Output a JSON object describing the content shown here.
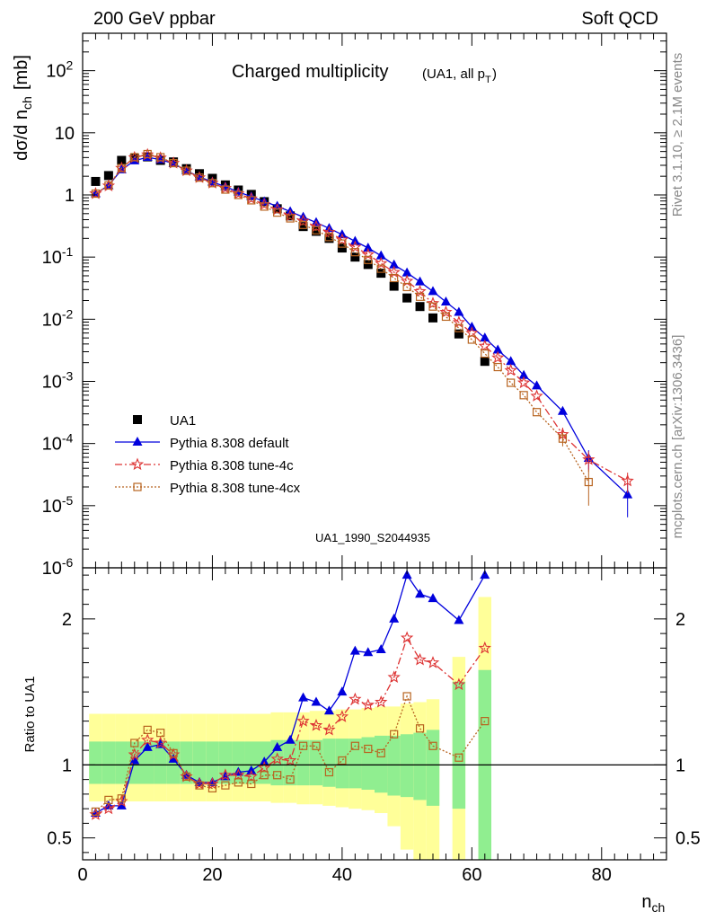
{
  "header": {
    "left": "200 GeV ppbar",
    "right": "Soft QCD",
    "side_top": "Rivet 3.1.10, ≥ 2.1M events",
    "side_bottom": "mcplots.cern.ch [arXiv:1306.3436]"
  },
  "chart_data": [
    {
      "type": "scatter",
      "title": "Charged multiplicity",
      "subtitle": "(UA1, all p_T)",
      "analysis_tag": "UA1_1990_S2044935",
      "ylabel": "dσ/d n_ch [mb]",
      "yscale": "log",
      "ylim": [
        1e-06,
        400
      ],
      "xlim": [
        0,
        90
      ],
      "ytick_labels": [
        "10^-6",
        "10^-5",
        "10^-4",
        "10^-3",
        "10^-2",
        "10^-1",
        "1",
        "10",
        "10^2"
      ],
      "legend_placement": "lower-left",
      "series": [
        {
          "name": "UA1",
          "color": "#000000",
          "marker": "filled-square",
          "line": "none",
          "x": [
            2,
            4,
            6,
            8,
            10,
            12,
            14,
            16,
            18,
            20,
            22,
            24,
            26,
            28,
            30,
            32,
            34,
            36,
            38,
            40,
            42,
            44,
            46,
            48,
            50,
            52,
            54,
            58,
            62
          ],
          "y": [
            1.65,
            2.05,
            3.6,
            3.9,
            4.1,
            3.6,
            3.4,
            2.65,
            2.2,
            1.85,
            1.45,
            1.2,
            1.02,
            0.78,
            0.6,
            0.46,
            0.31,
            0.26,
            0.2,
            0.14,
            0.1,
            0.076,
            0.055,
            0.034,
            0.022,
            0.016,
            0.0105,
            0.0058,
            0.0021
          ]
        },
        {
          "name": "Pythia 8.308 default",
          "color": "#0000dd",
          "marker": "filled-triangle",
          "line": "solid",
          "x": [
            2,
            4,
            6,
            8,
            10,
            12,
            14,
            16,
            18,
            20,
            22,
            24,
            26,
            28,
            30,
            32,
            34,
            36,
            38,
            40,
            42,
            44,
            46,
            48,
            50,
            52,
            54,
            56,
            58,
            60,
            62,
            64,
            66,
            68,
            70,
            74,
            78,
            84
          ],
          "y": [
            1.05,
            1.42,
            2.55,
            3.55,
            4.05,
            3.7,
            3.2,
            2.45,
            1.95,
            1.62,
            1.36,
            1.12,
            0.94,
            0.78,
            0.66,
            0.54,
            0.44,
            0.36,
            0.29,
            0.23,
            0.18,
            0.14,
            0.105,
            0.075,
            0.056,
            0.04,
            0.028,
            0.019,
            0.013,
            0.0075,
            0.005,
            0.0032,
            0.0021,
            0.00125,
            0.00085,
            0.00033,
            5.8e-05,
            1.5e-05
          ],
          "y_err": [
            0,
            0,
            0,
            0,
            0,
            0,
            0,
            0,
            0,
            0,
            0,
            0,
            0,
            0,
            0,
            0,
            0,
            0,
            0,
            0,
            0,
            0,
            0,
            0,
            0,
            0,
            0,
            0,
            0,
            0,
            0,
            0,
            0,
            0,
            0,
            3e-05,
            2e-05,
            8.5e-06
          ]
        },
        {
          "name": "Pythia 8.308 tune-4c",
          "color": "#dd3333",
          "marker": "open-star",
          "line": "dash-dot",
          "x": [
            2,
            4,
            6,
            8,
            10,
            12,
            14,
            16,
            18,
            20,
            22,
            24,
            26,
            28,
            30,
            32,
            34,
            36,
            38,
            40,
            42,
            44,
            46,
            48,
            50,
            52,
            54,
            56,
            58,
            60,
            62,
            64,
            66,
            68,
            70,
            74,
            78,
            84
          ],
          "y": [
            1.05,
            1.4,
            2.7,
            4.0,
            4.45,
            3.95,
            3.25,
            2.45,
            1.9,
            1.55,
            1.28,
            1.05,
            0.87,
            0.7,
            0.58,
            0.46,
            0.38,
            0.31,
            0.25,
            0.19,
            0.145,
            0.11,
            0.079,
            0.057,
            0.041,
            0.028,
            0.018,
            0.013,
            0.0089,
            0.006,
            0.0037,
            0.0024,
            0.0015,
            0.00095,
            0.00058,
            0.00014,
            5.5e-05,
            2.5e-05
          ],
          "y_err": [
            0,
            0,
            0,
            0,
            0,
            0,
            0,
            0,
            0,
            0,
            0,
            0,
            0,
            0,
            0,
            0,
            0,
            0,
            0,
            0,
            0,
            0,
            0,
            0,
            0,
            0,
            0,
            0,
            0,
            0,
            0,
            0,
            0,
            0,
            0,
            4e-05,
            2e-05,
            9e-06
          ]
        },
        {
          "name": "Pythia 8.308 tune-4cx",
          "color": "#b86420",
          "marker": "open-square",
          "line": "dotted",
          "x": [
            2,
            4,
            6,
            8,
            10,
            12,
            14,
            16,
            18,
            20,
            22,
            24,
            26,
            28,
            30,
            32,
            34,
            36,
            38,
            40,
            42,
            44,
            46,
            48,
            50,
            52,
            54,
            56,
            58,
            60,
            62,
            64,
            66,
            68,
            70,
            74,
            78
          ],
          "y": [
            1.05,
            1.42,
            2.7,
            4.05,
            4.55,
            4.05,
            3.25,
            2.45,
            1.9,
            1.55,
            1.22,
            1.0,
            0.82,
            0.65,
            0.52,
            0.42,
            0.33,
            0.27,
            0.21,
            0.165,
            0.12,
            0.09,
            0.065,
            0.046,
            0.033,
            0.023,
            0.016,
            0.011,
            0.0072,
            0.0047,
            0.0028,
            0.0017,
            0.00095,
            0.0006,
            0.00032,
            0.00012,
            2.4e-05
          ],
          "y_err": [
            0,
            0,
            0,
            0,
            0,
            0,
            0,
            0,
            0,
            0,
            0,
            0,
            0,
            0,
            0,
            0,
            0,
            0,
            0,
            0,
            0,
            0,
            0,
            0,
            0,
            0,
            0,
            0,
            0,
            0,
            0,
            0,
            0,
            0,
            0,
            3e-05,
            1.4e-05
          ]
        }
      ]
    },
    {
      "type": "line",
      "ylabel": "Ratio to UA1",
      "xlabel": "n_ch",
      "xlim": [
        0,
        90
      ],
      "ylim": [
        0.35,
        2.35
      ],
      "yticks": [
        0.5,
        1,
        2
      ],
      "ytick_labels": [
        "0.5",
        "1",
        "2"
      ],
      "xticks": [
        0,
        20,
        40,
        60,
        80
      ],
      "xtick_labels": [
        "0",
        "20",
        "40",
        "60",
        "80"
      ],
      "reference_line": 1,
      "uncertainty_bands": {
        "stat_color": "#90ee90",
        "total_color": "#ffff99",
        "bins": [
          {
            "x": [
              1,
              3
            ],
            "stat": [
              0.87,
              1.16
            ],
            "total": [
              0.75,
              1.35
            ]
          },
          {
            "x": [
              3,
              5
            ],
            "stat": [
              0.87,
              1.16
            ],
            "total": [
              0.75,
              1.35
            ]
          },
          {
            "x": [
              5,
              7
            ],
            "stat": [
              0.87,
              1.16
            ],
            "total": [
              0.75,
              1.35
            ]
          },
          {
            "x": [
              7,
              9
            ],
            "stat": [
              0.87,
              1.16
            ],
            "total": [
              0.75,
              1.35
            ]
          },
          {
            "x": [
              9,
              11
            ],
            "stat": [
              0.87,
              1.16
            ],
            "total": [
              0.75,
              1.35
            ]
          },
          {
            "x": [
              11,
              13
            ],
            "stat": [
              0.87,
              1.16
            ],
            "total": [
              0.75,
              1.35
            ]
          },
          {
            "x": [
              13,
              15
            ],
            "stat": [
              0.87,
              1.16
            ],
            "total": [
              0.75,
              1.35
            ]
          },
          {
            "x": [
              15,
              17
            ],
            "stat": [
              0.87,
              1.16
            ],
            "total": [
              0.75,
              1.35
            ]
          },
          {
            "x": [
              17,
              19
            ],
            "stat": [
              0.87,
              1.16
            ],
            "total": [
              0.75,
              1.35
            ]
          },
          {
            "x": [
              19,
              21
            ],
            "stat": [
              0.87,
              1.16
            ],
            "total": [
              0.75,
              1.35
            ]
          },
          {
            "x": [
              21,
              23
            ],
            "stat": [
              0.87,
              1.16
            ],
            "total": [
              0.75,
              1.35
            ]
          },
          {
            "x": [
              23,
              25
            ],
            "stat": [
              0.87,
              1.16
            ],
            "total": [
              0.75,
              1.35
            ]
          },
          {
            "x": [
              25,
              27
            ],
            "stat": [
              0.87,
              1.16
            ],
            "total": [
              0.75,
              1.35
            ]
          },
          {
            "x": [
              27,
              29
            ],
            "stat": [
              0.87,
              1.16
            ],
            "total": [
              0.75,
              1.35
            ]
          },
          {
            "x": [
              29,
              31
            ],
            "stat": [
              0.86,
              1.17
            ],
            "total": [
              0.74,
              1.36
            ]
          },
          {
            "x": [
              31,
              33
            ],
            "stat": [
              0.86,
              1.17
            ],
            "total": [
              0.74,
              1.36
            ]
          },
          {
            "x": [
              33,
              35
            ],
            "stat": [
              0.86,
              1.17
            ],
            "total": [
              0.73,
              1.36
            ]
          },
          {
            "x": [
              35,
              37
            ],
            "stat": [
              0.86,
              1.17
            ],
            "total": [
              0.73,
              1.37
            ]
          },
          {
            "x": [
              37,
              39
            ],
            "stat": [
              0.85,
              1.18
            ],
            "total": [
              0.72,
              1.37
            ]
          },
          {
            "x": [
              39,
              41
            ],
            "stat": [
              0.84,
              1.18
            ],
            "total": [
              0.71,
              1.38
            ]
          },
          {
            "x": [
              41,
              43
            ],
            "stat": [
              0.84,
              1.18
            ],
            "total": [
              0.7,
              1.38
            ]
          },
          {
            "x": [
              43,
              45
            ],
            "stat": [
              0.83,
              1.19
            ],
            "total": [
              0.69,
              1.39
            ]
          },
          {
            "x": [
              45,
              47
            ],
            "stat": [
              0.81,
              1.2
            ],
            "total": [
              0.67,
              1.4
            ]
          },
          {
            "x": [
              47,
              49
            ],
            "stat": [
              0.79,
              1.2
            ],
            "total": [
              0.58,
              1.4
            ]
          },
          {
            "x": [
              49,
              51
            ],
            "stat": [
              0.78,
              1.21
            ],
            "total": [
              0.42,
              1.42
            ]
          },
          {
            "x": [
              51,
              53
            ],
            "stat": [
              0.76,
              1.22
            ],
            "total": [
              0.35,
              1.43
            ]
          },
          {
            "x": [
              53,
              55
            ],
            "stat": [
              0.72,
              1.24
            ],
            "total": [
              0.35,
              1.45
            ]
          },
          {
            "x": [
              57,
              59
            ],
            "stat": [
              0.7,
              1.57
            ],
            "total": [
              0.35,
              1.74
            ]
          },
          {
            "x": [
              61,
              63
            ],
            "stat": [
              0.35,
              1.65
            ],
            "total": [
              0.35,
              2.15
            ]
          }
        ]
      },
      "series": [
        {
          "name": "Pythia 8.308 default",
          "color": "#0000dd",
          "x": [
            2,
            4,
            6,
            8,
            10,
            12,
            14,
            16,
            18,
            20,
            22,
            24,
            26,
            28,
            30,
            32,
            34,
            36,
            38,
            40,
            42,
            44,
            46,
            48,
            50,
            52,
            54,
            58,
            62
          ],
          "y": [
            0.67,
            0.72,
            0.72,
            1.03,
            1.12,
            1.14,
            1.04,
            0.93,
            0.88,
            0.88,
            0.92,
            0.95,
            0.96,
            1.02,
            1.12,
            1.17,
            1.46,
            1.43,
            1.37,
            1.5,
            1.78,
            1.77,
            1.79,
            2.0,
            2.3,
            2.17,
            2.14,
            1.99,
            2.3
          ]
        },
        {
          "name": "Pythia 8.308 tune-4c",
          "color": "#dd3333",
          "x": [
            2,
            4,
            6,
            8,
            10,
            12,
            14,
            16,
            18,
            20,
            22,
            24,
            26,
            28,
            30,
            32,
            34,
            36,
            38,
            40,
            42,
            44,
            46,
            48,
            50,
            52,
            54,
            58,
            62
          ],
          "y": [
            0.66,
            0.7,
            0.75,
            1.07,
            1.17,
            1.15,
            1.07,
            0.92,
            0.87,
            0.87,
            0.93,
            0.93,
            0.92,
            0.98,
            1.04,
            1.03,
            1.3,
            1.27,
            1.24,
            1.33,
            1.45,
            1.41,
            1.43,
            1.6,
            1.87,
            1.72,
            1.7,
            1.55,
            1.8
          ]
        },
        {
          "name": "Pythia 8.308 tune-4cx",
          "color": "#b86420",
          "x": [
            2,
            4,
            6,
            8,
            10,
            12,
            14,
            16,
            18,
            20,
            22,
            24,
            26,
            28,
            30,
            32,
            34,
            36,
            38,
            40,
            42,
            44,
            46,
            48,
            50,
            52,
            54,
            58,
            62
          ],
          "y": [
            0.68,
            0.76,
            0.77,
            1.15,
            1.24,
            1.22,
            1.08,
            0.92,
            0.86,
            0.84,
            0.86,
            0.88,
            0.87,
            0.93,
            0.93,
            0.9,
            1.13,
            1.13,
            0.95,
            1.03,
            1.13,
            1.11,
            1.08,
            1.21,
            1.47,
            1.25,
            1.13,
            1.05,
            1.3
          ]
        }
      ]
    }
  ]
}
